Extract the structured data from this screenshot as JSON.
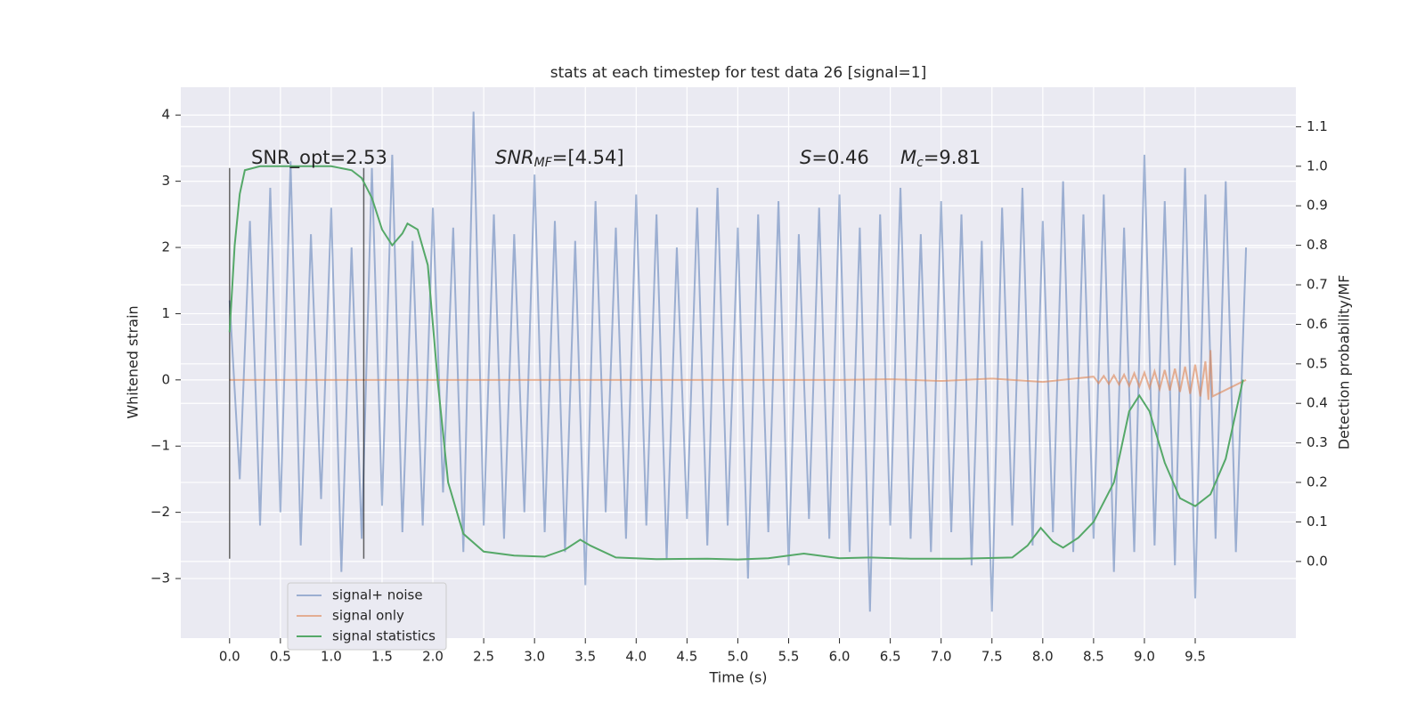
{
  "chart_data": {
    "type": "line",
    "title": "stats at each timestep for test data 26 [signal=1]",
    "x_label": "Time (s)",
    "y_label": "Whitened strain",
    "y2_label": "Detection probability/MF",
    "xlim": [
      -0.48,
      10.49
    ],
    "ylim": [
      -3.9,
      4.42
    ],
    "y2lim": [
      -0.194,
      1.2
    ],
    "xticks": [
      {
        "value": 0,
        "label": "0.0"
      },
      0.5,
      {
        "value": 1,
        "label": "1.0"
      },
      1.5,
      {
        "value": 2,
        "label": "2.0"
      },
      2.5,
      {
        "value": 3,
        "label": "3.0"
      },
      3.5,
      {
        "value": 4,
        "label": "4.0"
      },
      4.5,
      {
        "value": 5,
        "label": "5.0"
      },
      5.5,
      {
        "value": 6,
        "label": "6.0"
      },
      6.5,
      {
        "value": 7,
        "label": "7.0"
      },
      7.5,
      {
        "value": 8,
        "label": "8.0"
      },
      8.5,
      {
        "value": 9,
        "label": "9.0"
      },
      9.5
    ],
    "yticks": [
      {
        "value": -3,
        "label": "−3"
      },
      {
        "value": -2,
        "label": "−2"
      },
      {
        "value": -1,
        "label": "−1"
      },
      0,
      1,
      2,
      3,
      4
    ],
    "y2ticks": [
      {
        "value": 0,
        "label": "0.0"
      },
      0.1,
      0.2,
      0.3,
      0.4,
      0.5,
      0.6,
      0.7,
      0.8,
      0.9,
      {
        "value": 1,
        "label": "1.0"
      },
      1.1
    ],
    "grid": true,
    "background": "#eaeaf2",
    "legend_loc": "lower left",
    "vlines_x": [
      0,
      1.32
    ],
    "vlines_ylim": [
      -2.7,
      3.2
    ],
    "vlines_color": "#000000",
    "annotations": [
      {
        "text": "SNR_opt=2.53"
      },
      {
        "base": "SNR",
        "sub": "MF",
        "text": "=[4.54]"
      },
      {
        "base": "S",
        "text": "=0.46"
      },
      {
        "base": "M",
        "sub": "c",
        "text": "=9.81"
      }
    ],
    "series": [
      {
        "name": "signal+ noise",
        "color": "#4c72b0",
        "opacity": 0.5,
        "x": [
          0,
          0.1,
          0.2,
          0.3,
          0.4,
          0.5,
          0.6,
          0.7,
          0.8,
          0.9,
          1,
          1.1,
          1.2,
          1.3,
          1.4,
          1.5,
          1.6,
          1.7,
          1.8,
          1.9,
          2,
          2.1,
          2.2,
          2.3,
          2.4,
          2.5,
          2.6,
          2.7,
          2.8,
          2.9,
          3,
          3.1,
          3.2,
          3.3,
          3.4,
          3.5,
          3.6,
          3.7,
          3.8,
          3.9,
          4,
          4.1,
          4.2,
          4.3,
          4.4,
          4.5,
          4.6,
          4.7,
          4.8,
          4.9,
          5,
          5.1,
          5.2,
          5.3,
          5.4,
          5.5,
          5.6,
          5.7,
          5.8,
          5.9,
          6,
          6.1,
          6.2,
          6.3,
          6.4,
          6.5,
          6.6,
          6.7,
          6.8,
          6.9,
          7,
          7.1,
          7.2,
          7.3,
          7.4,
          7.5,
          7.6,
          7.7,
          7.8,
          7.9,
          8,
          8.1,
          8.2,
          8.3,
          8.4,
          8.5,
          8.6,
          8.7,
          8.8,
          8.9,
          9,
          9.1,
          9.2,
          9.3,
          9.4,
          9.5,
          9.6,
          9.7,
          9.8,
          9.9,
          10
        ],
        "values": [
          1.2,
          -1.5,
          2.4,
          -2.2,
          2.9,
          -2.0,
          3.3,
          -2.5,
          2.2,
          -1.8,
          2.6,
          -2.9,
          2.0,
          -2.4,
          3.2,
          -1.9,
          3.4,
          -2.3,
          2.1,
          -2.2,
          2.6,
          -1.7,
          2.3,
          -2.6,
          4.05,
          -2.2,
          2.5,
          -2.4,
          2.2,
          -2.0,
          3.1,
          -2.3,
          2.4,
          -2.6,
          2.1,
          -3.1,
          2.7,
          -2.0,
          2.3,
          -2.4,
          2.8,
          -2.2,
          2.5,
          -2.7,
          2.0,
          -2.1,
          2.6,
          -2.5,
          2.9,
          -2.2,
          2.3,
          -3.0,
          2.5,
          -2.3,
          2.7,
          -2.8,
          2.2,
          -2.1,
          2.6,
          -2.4,
          2.8,
          -2.6,
          2.3,
          -3.5,
          2.5,
          -2.2,
          2.9,
          -2.4,
          2.2,
          -2.6,
          2.7,
          -2.3,
          2.5,
          -2.8,
          2.1,
          -3.5,
          2.6,
          -2.2,
          2.9,
          -2.5,
          2.4,
          -2.3,
          3.0,
          -2.6,
          2.5,
          -2.4,
          2.8,
          -2.9,
          2.3,
          -2.6,
          3.4,
          -2.5,
          2.7,
          -2.8,
          3.2,
          -3.3,
          2.8,
          -2.4,
          3.0,
          -2.6,
          2.0
        ]
      },
      {
        "name": "signal only",
        "color": "#dd8452",
        "opacity": 0.6,
        "x": [
          0,
          2,
          4,
          6,
          6.5,
          7,
          7.5,
          8,
          8.5,
          8.55,
          8.6,
          8.65,
          8.7,
          8.75,
          8.8,
          8.85,
          8.9,
          8.95,
          9,
          9.05,
          9.1,
          9.15,
          9.2,
          9.25,
          9.3,
          9.35,
          9.4,
          9.45,
          9.5,
          9.55,
          9.6,
          9.63,
          9.65,
          9.67,
          10
        ],
        "values": [
          0,
          0,
          0,
          0,
          0.01,
          -0.015,
          0.02,
          -0.03,
          0.05,
          -0.05,
          0.06,
          -0.06,
          0.07,
          -0.07,
          0.08,
          -0.09,
          0.1,
          -0.1,
          0.11,
          -0.12,
          0.13,
          -0.14,
          0.15,
          -0.16,
          0.17,
          -0.18,
          0.2,
          -0.21,
          0.23,
          -0.25,
          0.28,
          -0.3,
          0.45,
          -0.25,
          0
        ]
      },
      {
        "name": "signal statistics",
        "color": "#55a868",
        "opacity": 1,
        "axis": "y2",
        "x": [
          0,
          0.05,
          0.1,
          0.15,
          0.3,
          0.5,
          0.8,
          1,
          1.2,
          1.3,
          1.4,
          1.5,
          1.6,
          1.7,
          1.75,
          1.85,
          1.95,
          2.05,
          2.15,
          2.3,
          2.5,
          2.8,
          3.1,
          3.3,
          3.45,
          3.55,
          3.8,
          4.2,
          4.7,
          5,
          5.3,
          5.65,
          6,
          6.3,
          6.7,
          7.2,
          7.7,
          7.85,
          7.98,
          8.1,
          8.2,
          8.35,
          8.5,
          8.7,
          8.85,
          8.95,
          9.05,
          9.2,
          9.35,
          9.5,
          9.65,
          9.8,
          9.97
        ],
        "values": [
          0.58,
          0.8,
          0.93,
          0.99,
          1.0,
          1.0,
          1.0,
          1.0,
          0.99,
          0.97,
          0.92,
          0.84,
          0.8,
          0.83,
          0.855,
          0.84,
          0.75,
          0.45,
          0.2,
          0.07,
          0.025,
          0.015,
          0.012,
          0.03,
          0.055,
          0.04,
          0.01,
          0.006,
          0.007,
          0.005,
          0.008,
          0.02,
          0.008,
          0.01,
          0.007,
          0.007,
          0.01,
          0.04,
          0.085,
          0.05,
          0.035,
          0.06,
          0.1,
          0.2,
          0.38,
          0.42,
          0.38,
          0.25,
          0.16,
          0.14,
          0.17,
          0.26,
          0.46
        ]
      }
    ]
  }
}
